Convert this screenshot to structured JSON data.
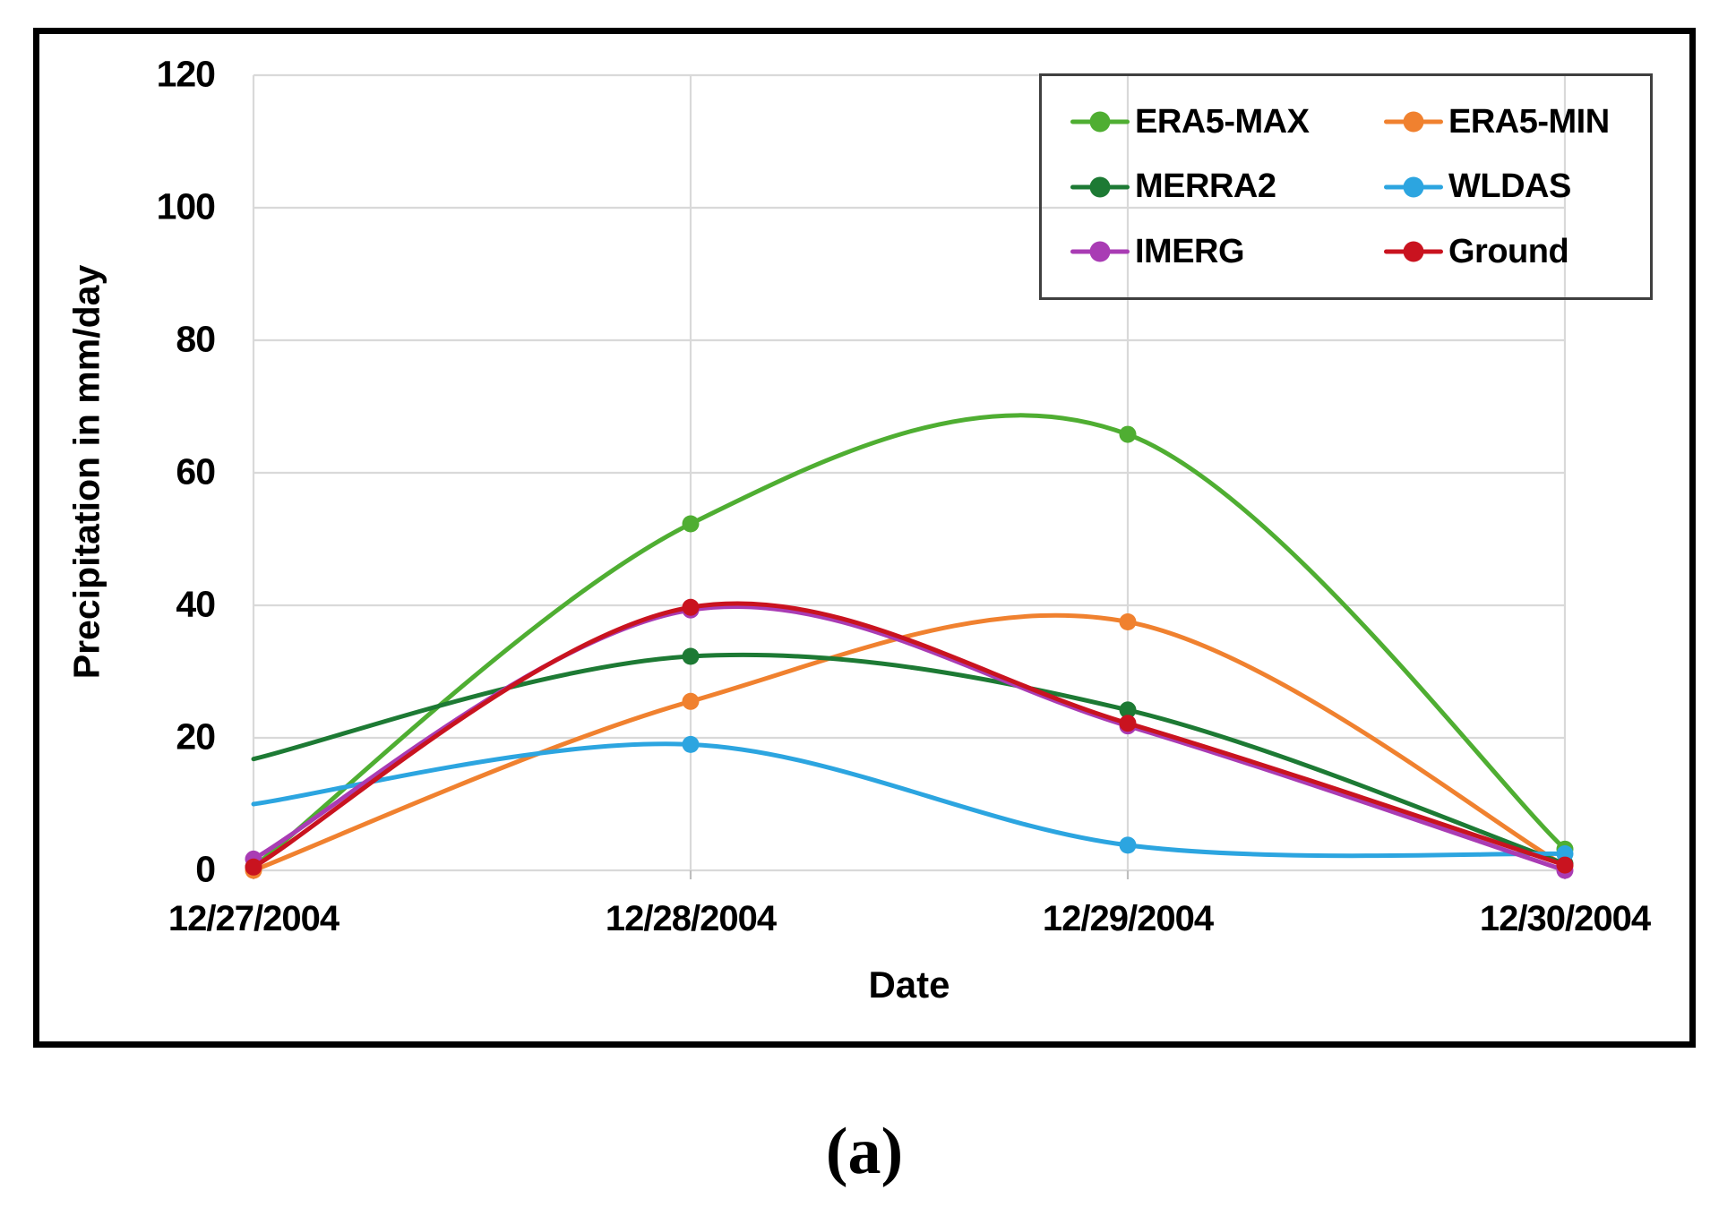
{
  "caption": "(a)",
  "chart_data": {
    "type": "line",
    "title": "",
    "xlabel": "Date",
    "ylabel": "Precipitation in mm/day",
    "categories": [
      "12/27/2004",
      "12/28/2004",
      "12/29/2004",
      "12/30/2004"
    ],
    "ylim": [
      0,
      120
    ],
    "ytick_step": 20,
    "grid": true,
    "line_style": "smooth",
    "legend_position": "top-right",
    "series": [
      {
        "name": "ERA5-MAX",
        "color": "#4FAE32",
        "values": [
          0.5,
          52.3,
          65.8,
          3.2
        ],
        "first_point_marker": true
      },
      {
        "name": "ERA5-MIN",
        "color": "#F0812F",
        "values": [
          0.0,
          25.5,
          37.5,
          0.7
        ],
        "first_point_marker": true
      },
      {
        "name": "MERRA2",
        "color": "#1D7A34",
        "values": [
          16.8,
          32.3,
          24.2,
          1.0
        ],
        "first_point_marker": false
      },
      {
        "name": "WLDAS",
        "color": "#2CA5E0",
        "values": [
          10.0,
          19.0,
          3.8,
          2.5
        ],
        "first_point_marker": false
      },
      {
        "name": "IMERG",
        "color": "#A93CB4",
        "values": [
          1.7,
          39.3,
          21.8,
          0.0
        ],
        "first_point_marker": true
      },
      {
        "name": "Ground",
        "color": "#C9131F",
        "values": [
          0.5,
          39.7,
          22.2,
          0.8
        ],
        "first_point_marker": true
      }
    ]
  }
}
